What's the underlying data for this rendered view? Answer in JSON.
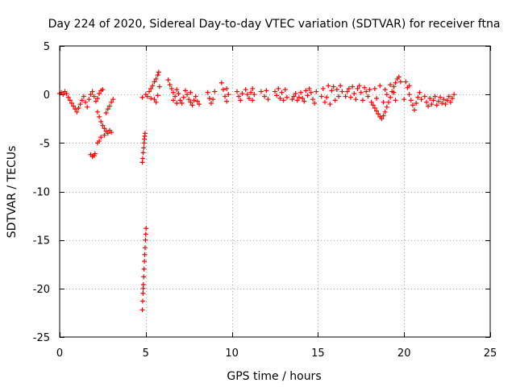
{
  "chart_data": {
    "type": "scatter",
    "title": "Day 224 of 2020, Sidereal Day-to-day VTEC variation (SDTVAR) for receiver ftna",
    "xlabel": "GPS time / hours",
    "ylabel": "SDTVAR / TECUs",
    "xlim": [
      0,
      25
    ],
    "ylim": [
      -25,
      5
    ],
    "xticks": [
      0,
      5,
      10,
      15,
      20,
      25
    ],
    "yticks": [
      5,
      0,
      -5,
      -10,
      -15,
      -20,
      -25
    ],
    "grid": true,
    "marker": "+",
    "color": "#ff0000",
    "series": [
      {
        "name": "SDTVAR",
        "points": [
          [
            0.0,
            0.1
          ],
          [
            0.1,
            0.2
          ],
          [
            0.2,
            0.0
          ],
          [
            0.3,
            0.3
          ],
          [
            0.4,
            0.1
          ],
          [
            0.5,
            -0.3
          ],
          [
            0.6,
            -0.6
          ],
          [
            0.7,
            -0.9
          ],
          [
            0.8,
            -1.2
          ],
          [
            0.9,
            -1.5
          ],
          [
            1.0,
            -1.8
          ],
          [
            1.1,
            -1.4
          ],
          [
            1.2,
            -1.0
          ],
          [
            1.3,
            -0.6
          ],
          [
            1.4,
            -0.2
          ],
          [
            1.5,
            -0.8
          ],
          [
            1.6,
            -1.3
          ],
          [
            1.7,
            -0.5
          ],
          [
            1.8,
            0.0
          ],
          [
            1.9,
            0.3
          ],
          [
            2.0,
            -0.2
          ],
          [
            2.1,
            -0.7
          ],
          [
            2.2,
            -0.4
          ],
          [
            2.3,
            0.1
          ],
          [
            2.4,
            0.4
          ],
          [
            2.5,
            0.5
          ],
          [
            1.8,
            -6.2
          ],
          [
            1.9,
            -6.4
          ],
          [
            2.0,
            -6.3
          ],
          [
            2.05,
            -6.1
          ],
          [
            2.2,
            -1.8
          ],
          [
            2.3,
            -2.3
          ],
          [
            2.4,
            -2.8
          ],
          [
            2.5,
            -3.2
          ],
          [
            2.6,
            -3.5
          ],
          [
            2.7,
            -3.8
          ],
          [
            2.8,
            -4.0
          ],
          [
            2.9,
            -3.7
          ],
          [
            3.0,
            -3.9
          ],
          [
            2.4,
            -4.4
          ],
          [
            2.3,
            -4.8
          ],
          [
            2.6,
            -4.2
          ],
          [
            2.7,
            -1.9
          ],
          [
            2.8,
            -1.5
          ],
          [
            2.9,
            -1.2
          ],
          [
            3.0,
            -0.8
          ],
          [
            3.1,
            -0.5
          ],
          [
            2.2,
            -5.0
          ],
          [
            4.8,
            -7.0
          ],
          [
            4.82,
            -6.6
          ],
          [
            4.85,
            -6.0
          ],
          [
            4.88,
            -5.5
          ],
          [
            4.9,
            -5.0
          ],
          [
            4.92,
            -4.6
          ],
          [
            4.94,
            -4.3
          ],
          [
            4.96,
            -4.0
          ],
          [
            4.8,
            -22.2
          ],
          [
            4.82,
            -21.3
          ],
          [
            4.84,
            -20.5
          ],
          [
            4.86,
            -19.6
          ],
          [
            4.88,
            -18.8
          ],
          [
            4.9,
            -18.0
          ],
          [
            4.92,
            -17.2
          ],
          [
            4.94,
            -16.5
          ],
          [
            4.96,
            -15.8
          ],
          [
            4.98,
            -15.0
          ],
          [
            5.0,
            -14.4
          ],
          [
            5.02,
            -13.8
          ],
          [
            4.85,
            -20.0
          ],
          [
            4.8,
            -0.3
          ],
          [
            5.0,
            0.0
          ],
          [
            5.1,
            -0.2
          ],
          [
            5.2,
            0.3
          ],
          [
            5.3,
            0.6
          ],
          [
            5.4,
            0.9
          ],
          [
            5.5,
            1.3
          ],
          [
            5.6,
            1.6
          ],
          [
            5.7,
            2.0
          ],
          [
            5.75,
            2.3
          ],
          [
            5.5,
            -0.5
          ],
          [
            5.6,
            -0.8
          ],
          [
            5.3,
            -0.4
          ],
          [
            5.8,
            0.8
          ],
          [
            5.7,
            -0.1
          ],
          [
            6.3,
            1.5
          ],
          [
            6.4,
            1.0
          ],
          [
            6.5,
            0.6
          ],
          [
            6.6,
            0.2
          ],
          [
            6.7,
            -0.2
          ],
          [
            6.8,
            0.5
          ],
          [
            6.9,
            0.1
          ],
          [
            7.0,
            -0.6
          ],
          [
            7.1,
            -0.9
          ],
          [
            7.2,
            -0.3
          ],
          [
            7.3,
            0.4
          ],
          [
            7.4,
            0.0
          ],
          [
            7.5,
            -0.5
          ],
          [
            7.6,
            -0.8
          ],
          [
            7.7,
            -1.1
          ],
          [
            7.8,
            -0.6
          ],
          [
            7.9,
            -0.2
          ],
          [
            8.0,
            -0.7
          ],
          [
            8.1,
            -1.0
          ],
          [
            6.6,
            -0.6
          ],
          [
            6.8,
            -0.9
          ],
          [
            7.6,
            0.2
          ],
          [
            8.6,
            0.2
          ],
          [
            8.7,
            -0.4
          ],
          [
            8.8,
            -0.9
          ],
          [
            8.9,
            -0.5
          ],
          [
            9.0,
            0.3
          ],
          [
            9.4,
            1.2
          ],
          [
            9.5,
            0.5
          ],
          [
            9.6,
            -0.2
          ],
          [
            9.7,
            -0.7
          ],
          [
            9.8,
            0.0
          ],
          [
            9.7,
            0.6
          ],
          [
            10.3,
            0.3
          ],
          [
            10.4,
            -0.2
          ],
          [
            10.5,
            -0.6
          ],
          [
            10.6,
            0.1
          ],
          [
            10.8,
            0.5
          ],
          [
            10.9,
            0.0
          ],
          [
            11.0,
            -0.4
          ],
          [
            11.1,
            0.2
          ],
          [
            11.2,
            0.6
          ],
          [
            11.3,
            0.0
          ],
          [
            11.2,
            -0.6
          ],
          [
            11.7,
            0.3
          ],
          [
            11.9,
            -0.2
          ],
          [
            12.0,
            0.4
          ],
          [
            12.1,
            -0.5
          ],
          [
            12.5,
            0.3
          ],
          [
            12.6,
            -0.1
          ],
          [
            12.7,
            0.6
          ],
          [
            12.8,
            -0.4
          ],
          [
            12.9,
            0.2
          ],
          [
            13.0,
            -0.6
          ],
          [
            13.1,
            0.5
          ],
          [
            13.2,
            -0.3
          ],
          [
            13.5,
            -0.5
          ],
          [
            13.6,
            -0.2
          ],
          [
            13.7,
            0.1
          ],
          [
            13.8,
            -0.6
          ],
          [
            13.9,
            -0.3
          ],
          [
            14.0,
            0.2
          ],
          [
            14.1,
            -0.4
          ],
          [
            14.2,
            -0.7
          ],
          [
            14.3,
            0.4
          ],
          [
            14.4,
            -0.1
          ],
          [
            14.5,
            0.6
          ],
          [
            14.6,
            0.2
          ],
          [
            14.7,
            -0.5
          ],
          [
            14.8,
            -0.9
          ],
          [
            14.9,
            0.3
          ],
          [
            15.2,
            -0.2
          ],
          [
            15.3,
            0.6
          ],
          [
            15.4,
            -0.8
          ],
          [
            15.5,
            -0.3
          ],
          [
            15.6,
            0.9
          ],
          [
            15.7,
            -1.0
          ],
          [
            15.8,
            0.4
          ],
          [
            15.9,
            0.8
          ],
          [
            16.0,
            -0.6
          ],
          [
            16.1,
            0.5
          ],
          [
            16.2,
            -0.2
          ],
          [
            16.3,
            0.9
          ],
          [
            16.4,
            0.3
          ],
          [
            16.6,
            -0.2
          ],
          [
            16.7,
            0.3
          ],
          [
            16.8,
            0.6
          ],
          [
            16.9,
            -0.3
          ],
          [
            17.0,
            0.8
          ],
          [
            17.1,
            0.1
          ],
          [
            17.2,
            -0.5
          ],
          [
            17.3,
            0.6
          ],
          [
            17.4,
            0.9
          ],
          [
            17.5,
            0.2
          ],
          [
            17.6,
            -0.6
          ],
          [
            17.7,
            0.7
          ],
          [
            17.8,
            0.3
          ],
          [
            17.9,
            -0.2
          ],
          [
            18.0,
            0.5
          ],
          [
            18.1,
            -0.8
          ],
          [
            18.2,
            -1.1
          ],
          [
            18.3,
            -1.4
          ],
          [
            18.4,
            -1.7
          ],
          [
            18.5,
            -2.0
          ],
          [
            18.6,
            -2.3
          ],
          [
            18.7,
            -2.5
          ],
          [
            18.8,
            -2.2
          ],
          [
            18.9,
            -1.8
          ],
          [
            19.0,
            -1.3
          ],
          [
            19.1,
            -0.8
          ],
          [
            19.2,
            -0.3
          ],
          [
            19.3,
            0.3
          ],
          [
            19.4,
            0.8
          ],
          [
            19.5,
            1.2
          ],
          [
            19.6,
            1.6
          ],
          [
            19.7,
            1.8
          ],
          [
            19.8,
            1.3
          ],
          [
            18.3,
            0.6
          ],
          [
            18.6,
            0.9
          ],
          [
            18.9,
            0.5
          ],
          [
            19.2,
            1.0
          ],
          [
            18.4,
            -0.4
          ],
          [
            18.8,
            -0.8
          ],
          [
            19.5,
            -0.6
          ],
          [
            19.4,
            0.2
          ],
          [
            19.0,
            0.0
          ],
          [
            20.0,
            -0.5
          ],
          [
            20.1,
            1.3
          ],
          [
            20.2,
            0.7
          ],
          [
            20.3,
            0.0
          ],
          [
            20.4,
            -0.6
          ],
          [
            20.5,
            -1.1
          ],
          [
            20.6,
            -1.6
          ],
          [
            20.7,
            -0.9
          ],
          [
            20.8,
            -0.3
          ],
          [
            20.9,
            0.2
          ],
          [
            21.0,
            -0.5
          ],
          [
            20.3,
            0.9
          ],
          [
            21.2,
            -0.2
          ],
          [
            21.3,
            -0.8
          ],
          [
            21.4,
            -1.2
          ],
          [
            21.5,
            -0.4
          ],
          [
            21.6,
            -1.0
          ],
          [
            21.7,
            -0.6
          ],
          [
            21.8,
            -0.2
          ],
          [
            21.9,
            -1.1
          ],
          [
            22.0,
            -0.7
          ],
          [
            22.1,
            -0.3
          ],
          [
            22.2,
            -0.9
          ],
          [
            22.3,
            -0.5
          ],
          [
            22.4,
            -1.0
          ],
          [
            22.5,
            -0.6
          ],
          [
            22.6,
            -0.2
          ],
          [
            22.7,
            -0.8
          ],
          [
            22.8,
            -0.4
          ],
          [
            22.9,
            0.0
          ]
        ]
      }
    ]
  }
}
